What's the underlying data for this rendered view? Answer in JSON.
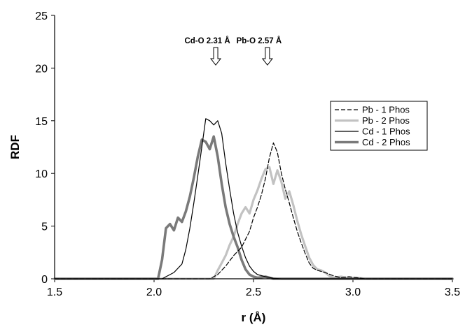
{
  "chart_data": {
    "type": "line",
    "title": "",
    "xlabel": "r (Å)",
    "ylabel": "RDF",
    "xlim": [
      1.5,
      3.5
    ],
    "ylim": [
      0,
      25
    ],
    "x_ticks": [
      "1.5",
      "2.0",
      "2.5",
      "3.0",
      "3.5"
    ],
    "y_ticks": [
      "0",
      "5",
      "10",
      "15",
      "20",
      "25"
    ],
    "grid": false,
    "legend_position": "right",
    "annotations": [
      {
        "text": "Cd-O 2.31 Å",
        "x": 2.31
      },
      {
        "text": "Pb-O 2.57 Å",
        "x": 2.57
      }
    ],
    "series": [
      {
        "name": "Pb - 1 Phos",
        "color": "#000000",
        "style": "dashed",
        "points": [
          [
            1.5,
            0
          ],
          [
            2.28,
            0
          ],
          [
            2.32,
            0.4
          ],
          [
            2.36,
            1.2
          ],
          [
            2.4,
            2.2
          ],
          [
            2.44,
            3.0
          ],
          [
            2.48,
            4.5
          ],
          [
            2.5,
            5.8
          ],
          [
            2.52,
            6.8
          ],
          [
            2.54,
            8.0
          ],
          [
            2.56,
            9.5
          ],
          [
            2.58,
            11.5
          ],
          [
            2.6,
            12.9
          ],
          [
            2.62,
            12.0
          ],
          [
            2.64,
            10.0
          ],
          [
            2.66,
            8.5
          ],
          [
            2.68,
            7.2
          ],
          [
            2.7,
            5.8
          ],
          [
            2.72,
            4.5
          ],
          [
            2.74,
            3.4
          ],
          [
            2.76,
            2.4
          ],
          [
            2.78,
            1.5
          ],
          [
            2.8,
            1.0
          ],
          [
            2.82,
            0.8
          ],
          [
            2.84,
            0.7
          ],
          [
            2.86,
            0.6
          ],
          [
            2.9,
            0.3
          ],
          [
            2.94,
            0.1
          ],
          [
            2.98,
            0.2
          ],
          [
            3.02,
            0.1
          ],
          [
            3.06,
            0
          ],
          [
            3.5,
            0
          ]
        ]
      },
      {
        "name": "Pb - 2 Phos",
        "color": "#c2c2c2",
        "style": "solid",
        "points": [
          [
            1.5,
            0
          ],
          [
            2.3,
            0
          ],
          [
            2.32,
            0.8
          ],
          [
            2.34,
            1.5
          ],
          [
            2.36,
            2.2
          ],
          [
            2.38,
            3.2
          ],
          [
            2.4,
            4.0
          ],
          [
            2.42,
            5.2
          ],
          [
            2.44,
            6.2
          ],
          [
            2.46,
            6.8
          ],
          [
            2.48,
            6.2
          ],
          [
            2.5,
            7.5
          ],
          [
            2.52,
            8.4
          ],
          [
            2.54,
            9.5
          ],
          [
            2.56,
            10.4
          ],
          [
            2.58,
            10.6
          ],
          [
            2.6,
            9.0
          ],
          [
            2.62,
            10.3
          ],
          [
            2.64,
            9.2
          ],
          [
            2.66,
            7.6
          ],
          [
            2.68,
            8.3
          ],
          [
            2.7,
            7.0
          ],
          [
            2.72,
            5.5
          ],
          [
            2.74,
            4.2
          ],
          [
            2.76,
            3.1
          ],
          [
            2.78,
            2.0
          ],
          [
            2.8,
            1.3
          ],
          [
            2.82,
            0.9
          ],
          [
            2.84,
            0.8
          ],
          [
            2.86,
            0.6
          ],
          [
            2.88,
            0.3
          ],
          [
            2.9,
            0.1
          ],
          [
            2.94,
            0.2
          ],
          [
            2.98,
            0.05
          ],
          [
            3.02,
            0.1
          ],
          [
            3.06,
            0
          ],
          [
            3.5,
            0
          ]
        ]
      },
      {
        "name": "Cd - 1 Phos",
        "color": "#000000",
        "style": "solid",
        "points": [
          [
            1.5,
            0
          ],
          [
            2.04,
            0
          ],
          [
            2.06,
            0.2
          ],
          [
            2.1,
            0.6
          ],
          [
            2.14,
            1.4
          ],
          [
            2.16,
            2.8
          ],
          [
            2.18,
            4.8
          ],
          [
            2.2,
            7.2
          ],
          [
            2.22,
            9.8
          ],
          [
            2.24,
            12.5
          ],
          [
            2.26,
            15.2
          ],
          [
            2.28,
            15.0
          ],
          [
            2.3,
            14.6
          ],
          [
            2.32,
            15.0
          ],
          [
            2.34,
            13.8
          ],
          [
            2.36,
            11.0
          ],
          [
            2.38,
            8.5
          ],
          [
            2.4,
            6.2
          ],
          [
            2.42,
            4.4
          ],
          [
            2.44,
            3.1
          ],
          [
            2.46,
            2.0
          ],
          [
            2.48,
            1.2
          ],
          [
            2.5,
            0.7
          ],
          [
            2.52,
            0.4
          ],
          [
            2.56,
            0.2
          ],
          [
            2.6,
            0.05
          ],
          [
            2.64,
            0
          ],
          [
            3.5,
            0
          ]
        ]
      },
      {
        "name": "Cd - 2 Phos",
        "color": "#7a7a7a",
        "style": "solid",
        "points": [
          [
            1.5,
            0
          ],
          [
            2.02,
            0
          ],
          [
            2.04,
            1.8
          ],
          [
            2.06,
            4.8
          ],
          [
            2.08,
            5.2
          ],
          [
            2.1,
            4.6
          ],
          [
            2.12,
            5.8
          ],
          [
            2.14,
            5.4
          ],
          [
            2.16,
            6.4
          ],
          [
            2.18,
            7.8
          ],
          [
            2.2,
            9.6
          ],
          [
            2.22,
            11.6
          ],
          [
            2.24,
            13.2
          ],
          [
            2.26,
            13.0
          ],
          [
            2.28,
            12.3
          ],
          [
            2.3,
            13.5
          ],
          [
            2.32,
            11.6
          ],
          [
            2.34,
            9.0
          ],
          [
            2.36,
            6.8
          ],
          [
            2.38,
            5.2
          ],
          [
            2.4,
            4.0
          ],
          [
            2.42,
            3.0
          ],
          [
            2.44,
            1.8
          ],
          [
            2.46,
            0.9
          ],
          [
            2.48,
            0.4
          ],
          [
            2.5,
            0.2
          ],
          [
            2.52,
            0.1
          ],
          [
            2.56,
            0.2
          ],
          [
            2.6,
            0
          ],
          [
            3.5,
            0
          ]
        ]
      }
    ]
  }
}
